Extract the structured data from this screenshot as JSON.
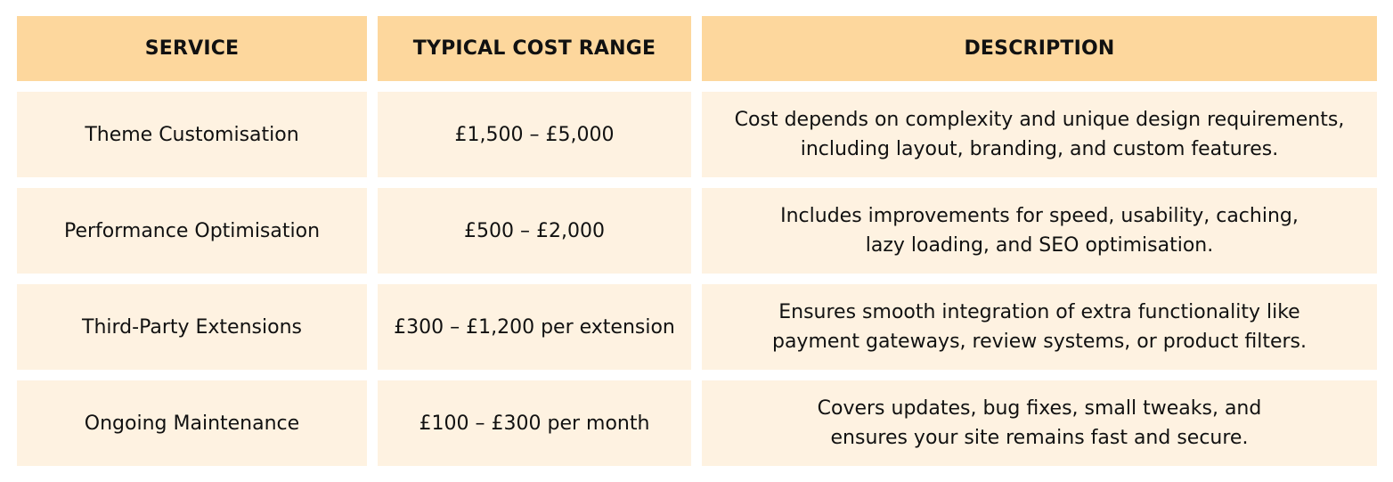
{
  "table": {
    "headers": [
      "SERVICE",
      "TYPICAL COST RANGE",
      "DESCRIPTION"
    ],
    "rows": [
      {
        "service": "Theme Customisation",
        "cost": "£1,500 – £5,000",
        "description": "Cost depends on complexity and unique design requirements,\nincluding layout, branding, and custom features."
      },
      {
        "service": "Performance Optimisation",
        "cost": "£500 – £2,000",
        "description": "Includes improvements for speed, usability, caching,\nlazy loading, and SEO optimisation."
      },
      {
        "service": "Third-Party Extensions",
        "cost": "£300 – £1,200 per extension",
        "description": "Ensures smooth integration of extra functionality like\npayment gateways, review systems, or product filters."
      },
      {
        "service": "Ongoing Maintenance",
        "cost": "£100 – £300 per month",
        "description": "Covers updates, bug fixes, small tweaks, and\nensures your site remains fast and secure."
      }
    ]
  },
  "colors": {
    "header_bg": "#fdd79d",
    "row_bg": "#fef2e1",
    "text": "#111111"
  }
}
